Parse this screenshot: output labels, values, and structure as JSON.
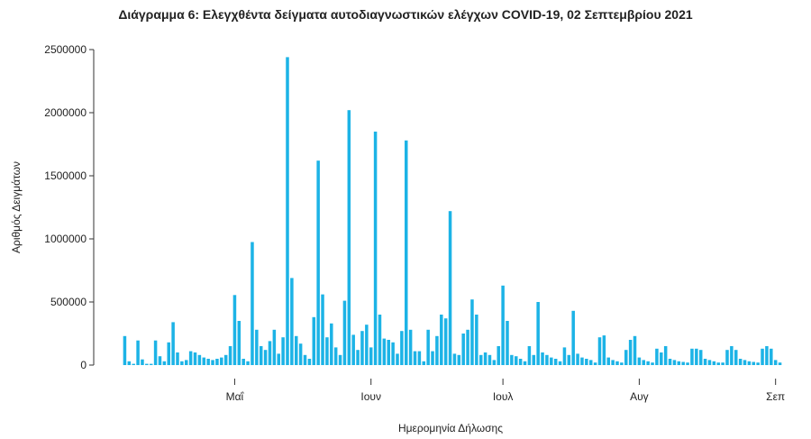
{
  "chart_data": {
    "type": "bar",
    "title": "Διάγραμμα 6: Ελεγχθέντα δείγματα αυτοδιαγνωστικών ελέγχων COVID-19, 02 Σεπτεμβρίου 2021",
    "xlabel": "Ημερομηνία Δήλωσης",
    "ylabel": "Αριθμός Δειγμάτων",
    "ylim": [
      0,
      2500000
    ],
    "yticks": [
      0,
      500000,
      1000000,
      1500000,
      2000000,
      2500000
    ],
    "ytick_labels": [
      "0",
      "500000",
      "1000000",
      "1500000",
      "2000000",
      "2500000"
    ],
    "x_start": "2021-04-06",
    "x_end": "2021-09-02",
    "xticks": [
      {
        "date": "2021-05-01",
        "label": "Μαΐ"
      },
      {
        "date": "2021-06-01",
        "label": "Ιουν"
      },
      {
        "date": "2021-07-01",
        "label": "Ιουλ"
      },
      {
        "date": "2021-08-01",
        "label": "Αυγ"
      },
      {
        "date": "2021-09-01",
        "label": "Σεπ"
      }
    ],
    "values": [
      230000,
      30000,
      10000,
      195000,
      45000,
      10000,
      10000,
      195000,
      70000,
      30000,
      180000,
      340000,
      100000,
      30000,
      40000,
      110000,
      100000,
      80000,
      60000,
      50000,
      40000,
      50000,
      60000,
      80000,
      150000,
      555000,
      350000,
      50000,
      30000,
      975000,
      280000,
      150000,
      120000,
      190000,
      280000,
      90000,
      220000,
      2440000,
      690000,
      230000,
      170000,
      80000,
      50000,
      380000,
      1620000,
      560000,
      220000,
      330000,
      140000,
      80000,
      510000,
      2020000,
      240000,
      120000,
      270000,
      320000,
      140000,
      1850000,
      400000,
      210000,
      200000,
      180000,
      90000,
      270000,
      1780000,
      280000,
      110000,
      110000,
      30000,
      280000,
      110000,
      230000,
      400000,
      370000,
      1220000,
      90000,
      80000,
      250000,
      280000,
      520000,
      400000,
      80000,
      100000,
      80000,
      40000,
      150000,
      630000,
      350000,
      80000,
      70000,
      50000,
      30000,
      150000,
      80000,
      500000,
      100000,
      80000,
      60000,
      50000,
      30000,
      140000,
      80000,
      430000,
      90000,
      60000,
      50000,
      40000,
      20000,
      220000,
      235000,
      60000,
      40000,
      30000,
      20000,
      120000,
      200000,
      230000,
      60000,
      40000,
      30000,
      20000,
      130000,
      100000,
      150000,
      50000,
      40000,
      30000,
      25000,
      20000,
      130000,
      130000,
      120000,
      50000,
      40000,
      30000,
      20000,
      20000,
      120000,
      150000,
      120000,
      50000,
      40000,
      30000,
      25000,
      20000,
      130000,
      150000,
      130000,
      40000,
      20000
    ]
  }
}
